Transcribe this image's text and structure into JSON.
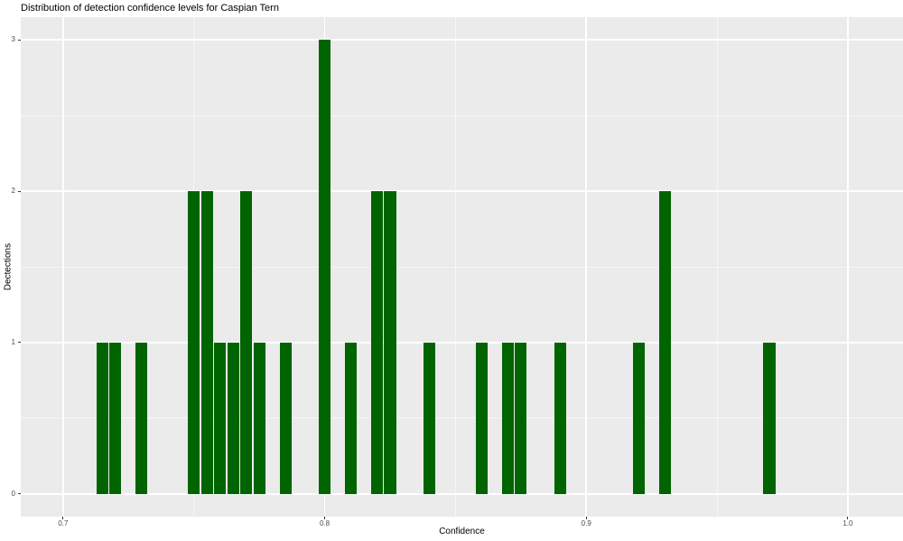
{
  "chart_data": {
    "type": "bar",
    "title": "Distribution of detection confidence levels for Caspian Tern",
    "xlabel": "Confidence",
    "ylabel": "Dectections",
    "x": [
      0.715,
      0.72,
      0.73,
      0.75,
      0.755,
      0.76,
      0.765,
      0.77,
      0.775,
      0.785,
      0.8,
      0.81,
      0.82,
      0.825,
      0.84,
      0.86,
      0.87,
      0.875,
      0.89,
      0.92,
      0.93,
      0.97
    ],
    "values": [
      1,
      1,
      1,
      2,
      2,
      1,
      1,
      2,
      1,
      1,
      3,
      1,
      2,
      2,
      1,
      1,
      1,
      1,
      1,
      1,
      2,
      1
    ],
    "bin_width": 0.005,
    "bar_rel_width": 0.9,
    "x_ticks": [
      0.7,
      0.8,
      0.9,
      1.0
    ],
    "x_tick_labels": [
      "0.7",
      "0.8",
      "0.9",
      "1.0"
    ],
    "y_ticks": [
      0,
      1,
      2,
      3
    ],
    "y_tick_labels": [
      "0",
      "1",
      "2",
      "3"
    ],
    "xlim": [
      0.6838,
      1.0211
    ],
    "ylim": [
      -0.15,
      3.15
    ],
    "grid": "major-and-minor-white",
    "legend_position": "none",
    "colors": {
      "bar": "#006400",
      "panel_bg": "#EBEBEB",
      "gridline": "#FFFFFF",
      "tick_text": "#4D4D4D",
      "axis_title": "#000000",
      "tick_mark": "#333333",
      "figure_bg": "#FFFFFF"
    }
  }
}
